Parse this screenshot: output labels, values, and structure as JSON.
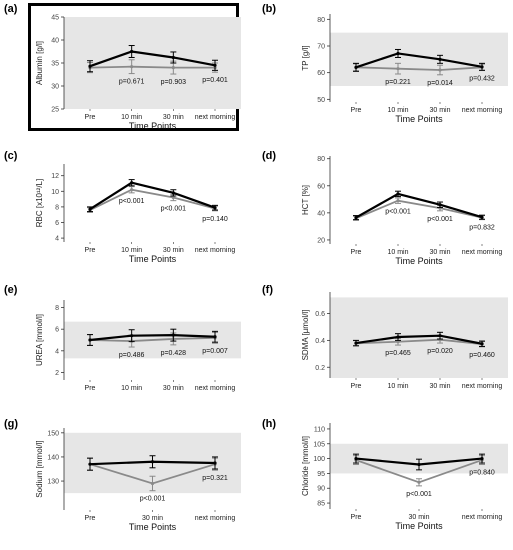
{
  "figure": {
    "colors": {
      "band": "#e6e6e6",
      "series_a": "#000000",
      "series_b": "#8a8a8a",
      "axis": "#333333",
      "text": "#000000"
    }
  },
  "chart_data": [
    {
      "panel": "(a)",
      "type": "line",
      "highlighted": true,
      "ylabel": "Albumin [g/l]",
      "xlabel": "Time Points",
      "categories": [
        "Pre",
        "10 min",
        "30 min",
        "next morning"
      ],
      "yticks": [
        25,
        30,
        35,
        40,
        45
      ],
      "ylim": [
        25,
        45
      ],
      "reference_band": [
        25,
        45
      ],
      "series": [
        {
          "values": [
            34.3,
            37.5,
            36.2,
            34.5
          ],
          "error": [
            1.2,
            1.3,
            1.2,
            1.1
          ]
        },
        {
          "values": [
            34.0,
            34.2,
            34.0,
            34.0
          ],
          "error": [
            1.1,
            1.5,
            1.4,
            1.0
          ]
        }
      ],
      "annotations": [
        "p=0.671",
        "p=0.903",
        "p=0.401"
      ],
      "annotation_at": [
        1,
        2,
        3
      ]
    },
    {
      "panel": "(b)",
      "type": "line",
      "highlighted": false,
      "ylabel": "TP [g/l]",
      "xlabel": "Time Points",
      "categories": [
        "Pre",
        "10 min",
        "30 min",
        "next morning"
      ],
      "yticks": [
        50,
        60,
        70,
        80
      ],
      "ylim": [
        49,
        82
      ],
      "reference_band": [
        55,
        75
      ],
      "series": [
        {
          "values": [
            62.0,
            67.2,
            65.0,
            62.2
          ],
          "error": [
            1.5,
            1.5,
            1.5,
            1.3
          ]
        },
        {
          "values": [
            62.0,
            61.5,
            61.0,
            62.0
          ],
          "error": [
            1.3,
            2.0,
            1.8,
            1.2
          ]
        }
      ],
      "annotations": [
        "p=0.221",
        "p=0.014",
        "p=0.432"
      ],
      "annotation_at": [
        1,
        2,
        3
      ]
    },
    {
      "panel": "(c)",
      "type": "line",
      "highlighted": false,
      "ylabel": "RBC [x10¹²/L]",
      "xlabel": "Time Points",
      "categories": [
        "Pre",
        "10 min",
        "30 min",
        "next morning"
      ],
      "yticks": [
        4,
        6,
        8,
        10,
        12
      ],
      "ylim": [
        3.5,
        13.5
      ],
      "reference_band": null,
      "series": [
        {
          "values": [
            7.7,
            11.1,
            9.8,
            7.9
          ],
          "error": [
            0.3,
            0.4,
            0.4,
            0.3
          ]
        },
        {
          "values": [
            7.6,
            10.2,
            9.2,
            7.8
          ],
          "error": [
            0.3,
            0.4,
            0.4,
            0.3
          ]
        }
      ],
      "annotations": [
        "p<0.001",
        "p<0.001",
        "p=0.140"
      ],
      "annotation_at": [
        1,
        2,
        3
      ]
    },
    {
      "panel": "(d)",
      "type": "line",
      "highlighted": false,
      "ylabel": "HCT [%]",
      "xlabel": "Time Points",
      "categories": [
        "Pre",
        "10 min",
        "30 min",
        "next morning"
      ],
      "yticks": [
        20,
        40,
        60,
        80
      ],
      "ylim": [
        17,
        82
      ],
      "reference_band": null,
      "series": [
        {
          "values": [
            36.5,
            54.0,
            46.0,
            36.8
          ],
          "error": [
            1.5,
            2.0,
            2.0,
            1.5
          ]
        },
        {
          "values": [
            36.0,
            49.0,
            43.5,
            36.5
          ],
          "error": [
            1.5,
            2.0,
            2.0,
            1.5
          ]
        }
      ],
      "annotations": [
        "p<0.001",
        "p<0.001",
        "p=0.832"
      ],
      "annotation_at": [
        1,
        2,
        3
      ]
    },
    {
      "panel": "(e)",
      "type": "line",
      "highlighted": false,
      "ylabel": "UREA [mmol/l]",
      "xlabel": "",
      "categories": [
        "Pre",
        "10 min",
        "30 min",
        "next morning"
      ],
      "yticks": [
        2,
        4,
        6,
        8
      ],
      "ylim": [
        1.3,
        8.7
      ],
      "reference_band": [
        3.3,
        6.7
      ],
      "series": [
        {
          "values": [
            5.0,
            5.4,
            5.45,
            5.3
          ],
          "error": [
            0.5,
            0.55,
            0.55,
            0.5
          ]
        },
        {
          "values": [
            5.0,
            4.9,
            5.1,
            5.2
          ],
          "error": [
            0.5,
            0.55,
            0.55,
            0.5
          ]
        }
      ],
      "annotations": [
        "p=0.486",
        "p=0.428",
        "p=0.007"
      ],
      "annotation_at": [
        1,
        2,
        3
      ]
    },
    {
      "panel": "(f)",
      "type": "line",
      "highlighted": false,
      "ylabel": "SDMA [µmol/l]",
      "xlabel": "",
      "categories": [
        "Pre",
        "10 min",
        "30 min",
        "next morning"
      ],
      "yticks": [
        0.2,
        0.4,
        0.6
      ],
      "ylim": [
        0.12,
        0.76
      ],
      "reference_band": [
        0.12,
        0.72
      ],
      "series": [
        {
          "values": [
            0.38,
            0.425,
            0.435,
            0.375
          ],
          "error": [
            0.02,
            0.025,
            0.025,
            0.02
          ]
        },
        {
          "values": [
            0.378,
            0.39,
            0.405,
            0.372
          ],
          "error": [
            0.02,
            0.025,
            0.025,
            0.02
          ]
        }
      ],
      "annotations": [
        "p=0.465",
        "p=0.020",
        "p=0.460"
      ],
      "annotation_at": [
        1,
        2,
        3
      ]
    },
    {
      "panel": "(g)",
      "type": "line",
      "highlighted": false,
      "ylabel": "Sodium [mmol/l]",
      "xlabel": "Time Points",
      "categories": [
        "Pre",
        "30 min",
        "next morning"
      ],
      "yticks": [
        130,
        140,
        150
      ],
      "ylim": [
        118,
        152
      ],
      "reference_band": [
        125,
        150
      ],
      "series": [
        {
          "values": [
            137,
            138,
            137.5
          ],
          "error": [
            2.5,
            2.5,
            2.5
          ]
        },
        {
          "values": [
            137,
            129,
            137
          ],
          "error": [
            2.5,
            3.0,
            2.5
          ]
        }
      ],
      "annotations": [
        "p<0.001",
        "p=0.321"
      ],
      "annotation_at": [
        1,
        2
      ]
    },
    {
      "panel": "(h)",
      "type": "line",
      "highlighted": false,
      "ylabel": "Chloride [mmol/l]",
      "xlabel": "Time Points",
      "categories": [
        "Pre",
        "30 min",
        "next morning"
      ],
      "yticks": [
        85,
        90,
        95,
        100,
        105,
        110
      ],
      "ylim": [
        83,
        112
      ],
      "reference_band": [
        95,
        105
      ],
      "series": [
        {
          "values": [
            100,
            98,
            100
          ],
          "error": [
            1.5,
            1.8,
            1.5
          ]
        },
        {
          "values": [
            99.5,
            92,
            99.5
          ],
          "error": [
            1.5,
            1.2,
            1.5
          ]
        }
      ],
      "annotations": [
        "p<0.001",
        "p=0.840"
      ],
      "annotation_at": [
        1,
        2
      ]
    }
  ]
}
